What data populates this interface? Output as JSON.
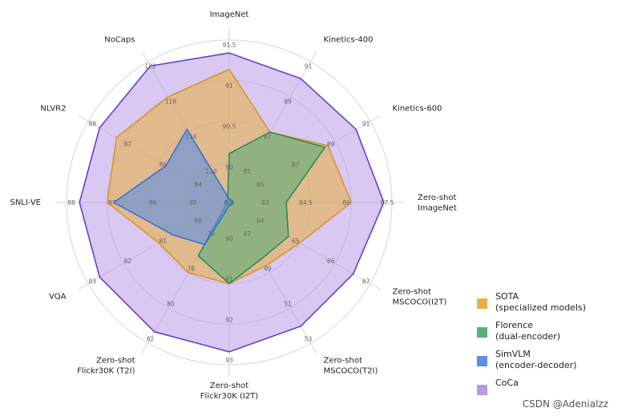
{
  "chart_data": {
    "type": "radar",
    "title": "",
    "axes": [
      {
        "label": "ImageNet",
        "ticks": [
          "90",
          "90.5",
          "91",
          "91.5"
        ]
      },
      {
        "label": "Kinetics-400",
        "ticks": [
          "85",
          "87",
          "89",
          "91"
        ]
      },
      {
        "label": "Kinetics-600",
        "ticks": [
          "85",
          "87",
          "89",
          "91"
        ]
      },
      {
        "label": "Zero-shot\nImageNet",
        "ticks": [
          "83",
          "84.5",
          "86",
          "87.5"
        ]
      },
      {
        "label": "Zero-shot\nMSCOCO(I2T)",
        "ticks": [
          "64",
          "65",
          "66",
          "67"
        ]
      },
      {
        "label": "Zero-shot\nMSCOCO(T2I)",
        "ticks": [
          "47",
          "49",
          "51",
          "53"
        ]
      },
      {
        "label": "Zero-shot\nFlickr30K (I2T)",
        "ticks": [
          "90",
          "91",
          "92",
          "93"
        ]
      },
      {
        "label": "Zero-shot\nFlickr30K (T2I)",
        "ticks": [
          "76",
          "78",
          "80",
          "82"
        ]
      },
      {
        "label": "VQA",
        "ticks": [
          "80",
          "81",
          "82",
          "83"
        ]
      },
      {
        "label": "SNLI-VE",
        "ticks": [
          "85",
          "86",
          "87",
          "88"
        ]
      },
      {
        "label": "NLVR2",
        "ticks": [
          "84",
          "86",
          "87",
          "88"
        ]
      },
      {
        "label": "NoCaps",
        "ticks": [
          "110",
          "114",
          "118",
          "122"
        ]
      }
    ],
    "center_label": "N/A",
    "series": [
      {
        "name": "SOTA\n(specialized models)",
        "color": "#E8B04A",
        "edge": "#D9962E",
        "values": [
          0.82,
          0.5,
          0.7,
          0.75,
          0.5,
          0.45,
          0.5,
          0.5,
          0.5,
          0.75,
          0.8,
          0.75
        ]
      },
      {
        "name": "Florence\n(dual-encoder)",
        "color": "#5DAF7A",
        "edge": "#2E8B57",
        "values": [
          0.3,
          0.5,
          0.68,
          0.35,
          0.42,
          0.4,
          0.5,
          0.38,
          0.02,
          0.02,
          0.02,
          0.02
        ]
      },
      {
        "name": "SimVLM\n(encoder-decoder)",
        "color": "#5A8FE6",
        "edge": "#3B6FD6",
        "values": [
          0.02,
          0.02,
          0.02,
          0.02,
          0.02,
          0.02,
          0.02,
          0.3,
          0.4,
          0.71,
          0.45,
          0.52
        ]
      },
      {
        "name": "CoCa",
        "color": "#B89AE8",
        "edge": "#6A3FC8",
        "values": [
          0.92,
          0.88,
          0.9,
          0.95,
          0.88,
          0.88,
          0.92,
          0.92,
          0.92,
          0.92,
          0.92,
          0.97
        ]
      }
    ],
    "grid": true,
    "legend_position": "bottom-right"
  },
  "watermark": "CSDN @Adenialzz"
}
